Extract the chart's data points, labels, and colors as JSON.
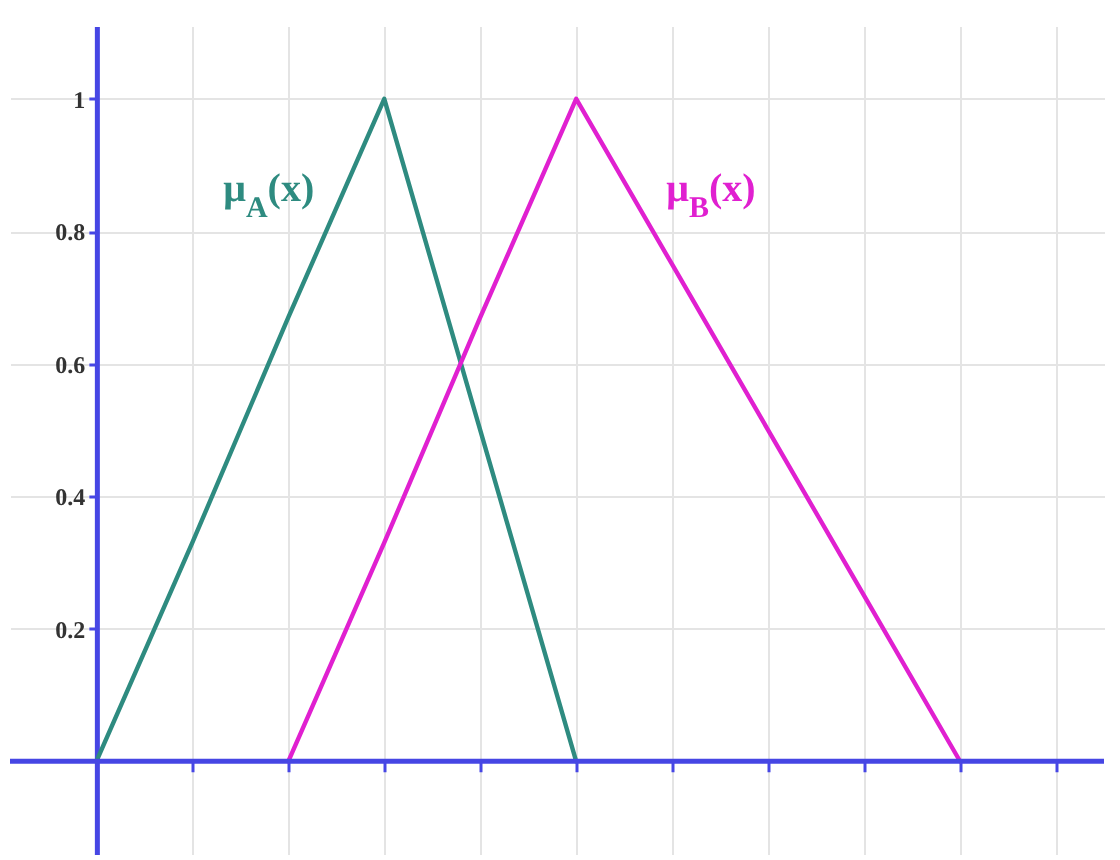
{
  "chart_data": {
    "type": "line",
    "categories": [
      null,
      null,
      null,
      null,
      null,
      null,
      null,
      null,
      null,
      null,
      null
    ],
    "series": [
      {
        "name": "μ$_{A}$(x)",
        "color": "#2e8b80",
        "values": [
          0,
          0.33,
          0.67,
          1,
          0.5,
          0,
          null,
          null,
          null,
          null,
          null
        ]
      },
      {
        "name": "μ$_{B}$(x)",
        "color": "#e020d0",
        "values": [
          null,
          null,
          0,
          0.33,
          0.67,
          1,
          0.75,
          0.5,
          0.25,
          0,
          null
        ]
      }
    ],
    "ylim": [
      -0.14,
      1.11
    ],
    "yticks": [
      0.2,
      0.4,
      0.6,
      0.8,
      1
    ],
    "ref_lines": [
      {
        "axis": "y",
        "value": 0,
        "color": "#4646e4"
      }
    ],
    "grid": true,
    "tick_labels": "y",
    "marker": "none",
    "line_style": "solid"
  }
}
